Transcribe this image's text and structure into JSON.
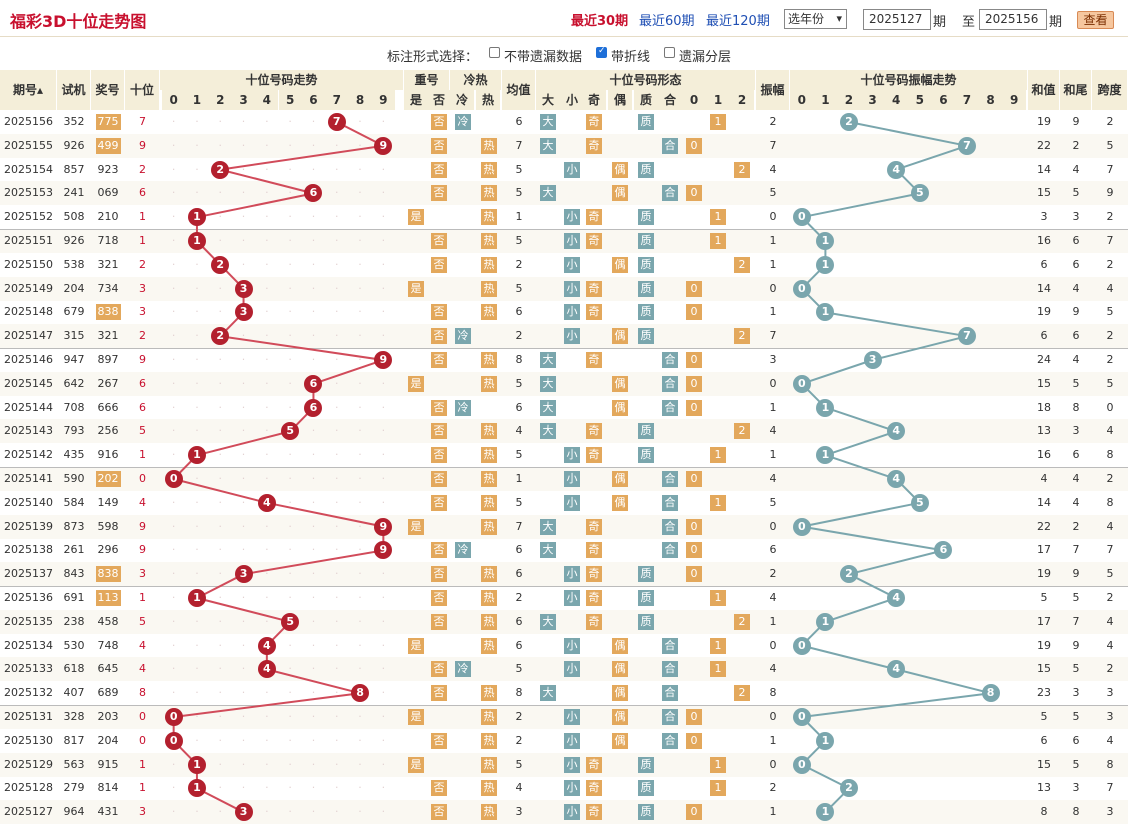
{
  "title": "福彩3D十位走势图",
  "nav": [
    {
      "label": "最近30期",
      "active": true
    },
    {
      "label": "最近60期",
      "active": false
    },
    {
      "label": "最近120期",
      "active": false
    }
  ],
  "year_select": "选年份",
  "from_issue": "2025127",
  "to_issue": "2025156",
  "period_label": "期",
  "to_label": "至",
  "query_button": "查看",
  "options": {
    "prompt": "标注形式选择：",
    "missing": "不带遗漏数据",
    "line": "带折线",
    "layer": "遗漏分层",
    "line_checked": true
  },
  "headers": {
    "issue": "期号",
    "trial": "试机",
    "prize": "奖号",
    "ten": "十位",
    "trend": "十位号码走势",
    "repeat": "重号",
    "coldhot": "冷热",
    "avg": "均值",
    "form": "十位号码形态",
    "amp": "振幅",
    "amptrend": "十位号码振幅走势",
    "sum": "和值",
    "tail": "和尾",
    "span": "跨度",
    "yes": "是",
    "no": "否",
    "cold": "冷",
    "hot": "热",
    "big": "大",
    "small": "小",
    "odd": "奇",
    "even": "偶",
    "prime": "质",
    "comp": "合",
    "d0": "0",
    "d1": "1",
    "d2": "2"
  },
  "digits": [
    "0",
    "1",
    "2",
    "3",
    "4",
    "5",
    "6",
    "7",
    "8",
    "9"
  ],
  "rows": [
    {
      "issue": "2025156",
      "trial": "352",
      "prize": "775",
      "group": true,
      "ten": 7,
      "rep": false,
      "hot": "冷",
      "avg": 6,
      "big": true,
      "odd": true,
      "prime": true,
      "mod": 1,
      "amp": 2,
      "sum": 19,
      "tail": 9,
      "span": 2
    },
    {
      "issue": "2025155",
      "trial": "926",
      "prize": "499",
      "group": true,
      "ten": 9,
      "rep": false,
      "hot": "热",
      "avg": 7,
      "big": true,
      "odd": true,
      "prime": false,
      "mod": 0,
      "amp": 7,
      "sum": 22,
      "tail": 2,
      "span": 5
    },
    {
      "issue": "2025154",
      "trial": "857",
      "prize": "923",
      "group": false,
      "ten": 2,
      "rep": false,
      "hot": "热",
      "avg": 5,
      "big": false,
      "odd": false,
      "prime": true,
      "mod": 2,
      "amp": 4,
      "sum": 14,
      "tail": 4,
      "span": 7
    },
    {
      "issue": "2025153",
      "trial": "241",
      "prize": "069",
      "group": false,
      "ten": 6,
      "rep": false,
      "hot": "热",
      "avg": 5,
      "big": true,
      "odd": false,
      "prime": false,
      "mod": 0,
      "amp": 5,
      "sum": 15,
      "tail": 5,
      "span": 9
    },
    {
      "issue": "2025152",
      "trial": "508",
      "prize": "210",
      "group": false,
      "ten": 1,
      "rep": true,
      "hot": "热",
      "avg": 1,
      "big": false,
      "odd": true,
      "prime": true,
      "mod": 1,
      "amp": 0,
      "sum": 3,
      "tail": 3,
      "span": 2
    },
    {
      "issue": "2025151",
      "trial": "926",
      "prize": "718",
      "group": false,
      "ten": 1,
      "rep": false,
      "hot": "热",
      "avg": 5,
      "big": false,
      "odd": true,
      "prime": true,
      "mod": 1,
      "amp": 1,
      "sum": 16,
      "tail": 6,
      "span": 7
    },
    {
      "issue": "2025150",
      "trial": "538",
      "prize": "321",
      "group": false,
      "ten": 2,
      "rep": false,
      "hot": "热",
      "avg": 2,
      "big": false,
      "odd": false,
      "prime": true,
      "mod": 2,
      "amp": 1,
      "sum": 6,
      "tail": 6,
      "span": 2
    },
    {
      "issue": "2025149",
      "trial": "204",
      "prize": "734",
      "group": false,
      "ten": 3,
      "rep": true,
      "hot": "热",
      "avg": 5,
      "big": false,
      "odd": true,
      "prime": true,
      "mod": 0,
      "amp": 0,
      "sum": 14,
      "tail": 4,
      "span": 4
    },
    {
      "issue": "2025148",
      "trial": "679",
      "prize": "838",
      "group": true,
      "ten": 3,
      "rep": false,
      "hot": "热",
      "avg": 6,
      "big": false,
      "odd": true,
      "prime": true,
      "mod": 0,
      "amp": 1,
      "sum": 19,
      "tail": 9,
      "span": 5
    },
    {
      "issue": "2025147",
      "trial": "315",
      "prize": "321",
      "group": false,
      "ten": 2,
      "rep": false,
      "hot": "冷",
      "avg": 2,
      "big": false,
      "odd": false,
      "prime": true,
      "mod": 2,
      "amp": 7,
      "sum": 6,
      "tail": 6,
      "span": 2
    },
    {
      "issue": "2025146",
      "trial": "947",
      "prize": "897",
      "group": false,
      "ten": 9,
      "rep": false,
      "hot": "热",
      "avg": 8,
      "big": true,
      "odd": true,
      "prime": false,
      "mod": 0,
      "amp": 3,
      "sum": 24,
      "tail": 4,
      "span": 2
    },
    {
      "issue": "2025145",
      "trial": "642",
      "prize": "267",
      "group": false,
      "ten": 6,
      "rep": true,
      "hot": "热",
      "avg": 5,
      "big": true,
      "odd": false,
      "prime": false,
      "mod": 0,
      "amp": 0,
      "sum": 15,
      "tail": 5,
      "span": 5
    },
    {
      "issue": "2025144",
      "trial": "708",
      "prize": "666",
      "group": false,
      "ten": 6,
      "rep": false,
      "hot": "冷",
      "avg": 6,
      "big": true,
      "odd": false,
      "prime": false,
      "mod": 0,
      "amp": 1,
      "sum": 18,
      "tail": 8,
      "span": 0
    },
    {
      "issue": "2025143",
      "trial": "793",
      "prize": "256",
      "group": false,
      "ten": 5,
      "rep": false,
      "hot": "热",
      "avg": 4,
      "big": true,
      "odd": true,
      "prime": true,
      "mod": 2,
      "amp": 4,
      "sum": 13,
      "tail": 3,
      "span": 4
    },
    {
      "issue": "2025142",
      "trial": "435",
      "prize": "916",
      "group": false,
      "ten": 1,
      "rep": false,
      "hot": "热",
      "avg": 5,
      "big": false,
      "odd": true,
      "prime": true,
      "mod": 1,
      "amp": 1,
      "sum": 16,
      "tail": 6,
      "span": 8
    },
    {
      "issue": "2025141",
      "trial": "590",
      "prize": "202",
      "group": true,
      "ten": 0,
      "rep": false,
      "hot": "热",
      "avg": 1,
      "big": false,
      "odd": false,
      "prime": false,
      "mod": 0,
      "amp": 4,
      "sum": 4,
      "tail": 4,
      "span": 2
    },
    {
      "issue": "2025140",
      "trial": "584",
      "prize": "149",
      "group": false,
      "ten": 4,
      "rep": false,
      "hot": "热",
      "avg": 5,
      "big": false,
      "odd": false,
      "prime": false,
      "mod": 1,
      "amp": 5,
      "sum": 14,
      "tail": 4,
      "span": 8
    },
    {
      "issue": "2025139",
      "trial": "873",
      "prize": "598",
      "group": false,
      "ten": 9,
      "rep": true,
      "hot": "热",
      "avg": 7,
      "big": true,
      "odd": true,
      "prime": false,
      "mod": 0,
      "amp": 0,
      "sum": 22,
      "tail": 2,
      "span": 4
    },
    {
      "issue": "2025138",
      "trial": "261",
      "prize": "296",
      "group": false,
      "ten": 9,
      "rep": false,
      "hot": "冷",
      "avg": 6,
      "big": true,
      "odd": true,
      "prime": false,
      "mod": 0,
      "amp": 6,
      "sum": 17,
      "tail": 7,
      "span": 7
    },
    {
      "issue": "2025137",
      "trial": "843",
      "prize": "838",
      "group": true,
      "ten": 3,
      "rep": false,
      "hot": "热",
      "avg": 6,
      "big": false,
      "odd": true,
      "prime": true,
      "mod": 0,
      "amp": 2,
      "sum": 19,
      "tail": 9,
      "span": 5
    },
    {
      "issue": "2025136",
      "trial": "691",
      "prize": "113",
      "group": true,
      "ten": 1,
      "rep": false,
      "hot": "热",
      "avg": 2,
      "big": false,
      "odd": true,
      "prime": true,
      "mod": 1,
      "amp": 4,
      "sum": 5,
      "tail": 5,
      "span": 2
    },
    {
      "issue": "2025135",
      "trial": "238",
      "prize": "458",
      "group": false,
      "ten": 5,
      "rep": false,
      "hot": "热",
      "avg": 6,
      "big": true,
      "odd": true,
      "prime": true,
      "mod": 2,
      "amp": 1,
      "sum": 17,
      "tail": 7,
      "span": 4
    },
    {
      "issue": "2025134",
      "trial": "530",
      "prize": "748",
      "group": false,
      "ten": 4,
      "rep": true,
      "hot": "热",
      "avg": 6,
      "big": false,
      "odd": false,
      "prime": false,
      "mod": 1,
      "amp": 0,
      "sum": 19,
      "tail": 9,
      "span": 4
    },
    {
      "issue": "2025133",
      "trial": "618",
      "prize": "645",
      "group": false,
      "ten": 4,
      "rep": false,
      "hot": "冷",
      "avg": 5,
      "big": false,
      "odd": false,
      "prime": false,
      "mod": 1,
      "amp": 4,
      "sum": 15,
      "tail": 5,
      "span": 2
    },
    {
      "issue": "2025132",
      "trial": "407",
      "prize": "689",
      "group": false,
      "ten": 8,
      "rep": false,
      "hot": "热",
      "avg": 8,
      "big": true,
      "odd": false,
      "prime": false,
      "mod": 2,
      "amp": 8,
      "sum": 23,
      "tail": 3,
      "span": 3
    },
    {
      "issue": "2025131",
      "trial": "328",
      "prize": "203",
      "group": false,
      "ten": 0,
      "rep": true,
      "hot": "热",
      "avg": 2,
      "big": false,
      "odd": false,
      "prime": false,
      "mod": 0,
      "amp": 0,
      "sum": 5,
      "tail": 5,
      "span": 3
    },
    {
      "issue": "2025130",
      "trial": "817",
      "prize": "204",
      "group": false,
      "ten": 0,
      "rep": false,
      "hot": "热",
      "avg": 2,
      "big": false,
      "odd": false,
      "prime": false,
      "mod": 0,
      "amp": 1,
      "sum": 6,
      "tail": 6,
      "span": 4
    },
    {
      "issue": "2025129",
      "trial": "563",
      "prize": "915",
      "group": false,
      "ten": 1,
      "rep": true,
      "hot": "热",
      "avg": 5,
      "big": false,
      "odd": true,
      "prime": true,
      "mod": 1,
      "amp": 0,
      "sum": 15,
      "tail": 5,
      "span": 8
    },
    {
      "issue": "2025128",
      "trial": "279",
      "prize": "814",
      "group": false,
      "ten": 1,
      "rep": false,
      "hot": "热",
      "avg": 4,
      "big": false,
      "odd": true,
      "prime": true,
      "mod": 1,
      "amp": 2,
      "sum": 13,
      "tail": 3,
      "span": 7
    },
    {
      "issue": "2025127",
      "trial": "964",
      "prize": "431",
      "group": false,
      "ten": 3,
      "rep": false,
      "hot": "热",
      "avg": 3,
      "big": false,
      "odd": true,
      "prime": true,
      "mod": 0,
      "amp": 1,
      "sum": 8,
      "tail": 8,
      "span": 3
    }
  ],
  "colors": {
    "accent": "#c8102e",
    "ball": "#b3202e",
    "teal": "#7aa6ad",
    "orange": "#e3a85c",
    "line_red": "#d14b5a",
    "line_teal": "#7aa6ad"
  }
}
